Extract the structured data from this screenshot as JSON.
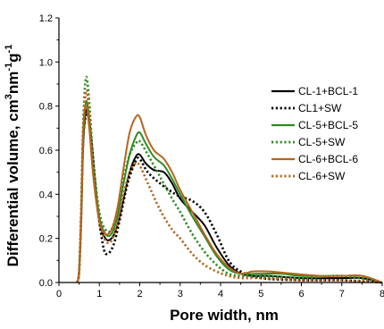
{
  "chart_data": {
    "type": "line",
    "title": "",
    "xlabel": "Pore width, nm",
    "ylabel_parts": {
      "main": "Differential volume, cm",
      "sup1": "3",
      "mid": "nm",
      "sup2": "-1",
      "g": "g",
      "sup3": "-1"
    },
    "xlim": [
      0,
      8
    ],
    "ylim": [
      0,
      1.2
    ],
    "xticks": [
      0,
      1,
      2,
      3,
      4,
      5,
      6,
      7,
      8
    ],
    "yticks": [
      0.0,
      0.2,
      0.4,
      0.6,
      0.8,
      1.0,
      1.2
    ],
    "ytick_labels": [
      "0.0",
      "0.2",
      "0.4",
      "0.6",
      "0.8",
      "1.0",
      "1.2"
    ],
    "legend_position": "right",
    "series": [
      {
        "name": "CL-1+BCL-1",
        "color": "#000000",
        "style": "solid",
        "points": [
          [
            0.45,
            0
          ],
          [
            0.5,
            0.05
          ],
          [
            0.55,
            0.28
          ],
          [
            0.6,
            0.62
          ],
          [
            0.67,
            0.78
          ],
          [
            0.75,
            0.72
          ],
          [
            0.85,
            0.5
          ],
          [
            1.0,
            0.28
          ],
          [
            1.15,
            0.2
          ],
          [
            1.3,
            0.2
          ],
          [
            1.45,
            0.26
          ],
          [
            1.6,
            0.38
          ],
          [
            1.75,
            0.5
          ],
          [
            1.9,
            0.57
          ],
          [
            2.0,
            0.58
          ],
          [
            2.15,
            0.54
          ],
          [
            2.35,
            0.51
          ],
          [
            2.6,
            0.5
          ],
          [
            2.8,
            0.45
          ],
          [
            3.0,
            0.38
          ],
          [
            3.3,
            0.32
          ],
          [
            3.6,
            0.26
          ],
          [
            3.9,
            0.16
          ],
          [
            4.2,
            0.08
          ],
          [
            4.5,
            0.04
          ],
          [
            4.8,
            0.03
          ],
          [
            5.2,
            0.03
          ],
          [
            6.0,
            0.02
          ],
          [
            7.0,
            0.02
          ],
          [
            7.5,
            0.02
          ],
          [
            8.0,
            0.0
          ]
        ]
      },
      {
        "name": "CL1+SW",
        "color": "#000000",
        "style": "dotted",
        "points": [
          [
            0.45,
            0
          ],
          [
            0.5,
            0.05
          ],
          [
            0.55,
            0.3
          ],
          [
            0.6,
            0.65
          ],
          [
            0.7,
            0.77
          ],
          [
            0.8,
            0.65
          ],
          [
            0.95,
            0.35
          ],
          [
            1.1,
            0.16
          ],
          [
            1.2,
            0.13
          ],
          [
            1.35,
            0.17
          ],
          [
            1.5,
            0.28
          ],
          [
            1.7,
            0.45
          ],
          [
            1.9,
            0.55
          ],
          [
            2.0,
            0.56
          ],
          [
            2.2,
            0.5
          ],
          [
            2.5,
            0.45
          ],
          [
            2.8,
            0.41
          ],
          [
            3.0,
            0.39
          ],
          [
            3.3,
            0.37
          ],
          [
            3.6,
            0.32
          ],
          [
            3.9,
            0.22
          ],
          [
            4.2,
            0.1
          ],
          [
            4.5,
            0.05
          ],
          [
            5.0,
            0.02
          ],
          [
            6.0,
            0.01
          ],
          [
            7.0,
            0.01
          ],
          [
            8.0,
            0.0
          ]
        ]
      },
      {
        "name": "CL-5+BCL-5",
        "color": "#2e8b22",
        "style": "solid",
        "points": [
          [
            0.45,
            0
          ],
          [
            0.5,
            0.05
          ],
          [
            0.55,
            0.3
          ],
          [
            0.6,
            0.65
          ],
          [
            0.67,
            0.82
          ],
          [
            0.75,
            0.74
          ],
          [
            0.85,
            0.52
          ],
          [
            1.0,
            0.3
          ],
          [
            1.15,
            0.22
          ],
          [
            1.3,
            0.22
          ],
          [
            1.45,
            0.3
          ],
          [
            1.6,
            0.45
          ],
          [
            1.75,
            0.58
          ],
          [
            1.9,
            0.66
          ],
          [
            2.0,
            0.68
          ],
          [
            2.15,
            0.63
          ],
          [
            2.35,
            0.57
          ],
          [
            2.6,
            0.53
          ],
          [
            2.8,
            0.47
          ],
          [
            3.0,
            0.4
          ],
          [
            3.3,
            0.3
          ],
          [
            3.6,
            0.21
          ],
          [
            3.9,
            0.12
          ],
          [
            4.2,
            0.06
          ],
          [
            4.5,
            0.04
          ],
          [
            5.0,
            0.04
          ],
          [
            5.5,
            0.04
          ],
          [
            6.0,
            0.03
          ],
          [
            7.0,
            0.03
          ],
          [
            7.5,
            0.03
          ],
          [
            8.0,
            0.0
          ]
        ]
      },
      {
        "name": "CL-5+SW",
        "color": "#2e8b22",
        "style": "dotted",
        "points": [
          [
            0.45,
            0
          ],
          [
            0.5,
            0.05
          ],
          [
            0.55,
            0.33
          ],
          [
            0.6,
            0.72
          ],
          [
            0.67,
            0.93
          ],
          [
            0.75,
            0.82
          ],
          [
            0.85,
            0.55
          ],
          [
            1.0,
            0.32
          ],
          [
            1.15,
            0.24
          ],
          [
            1.3,
            0.24
          ],
          [
            1.45,
            0.33
          ],
          [
            1.6,
            0.47
          ],
          [
            1.75,
            0.58
          ],
          [
            1.9,
            0.63
          ],
          [
            2.0,
            0.64
          ],
          [
            2.2,
            0.58
          ],
          [
            2.5,
            0.48
          ],
          [
            2.8,
            0.38
          ],
          [
            3.0,
            0.32
          ],
          [
            3.3,
            0.22
          ],
          [
            3.6,
            0.14
          ],
          [
            3.9,
            0.08
          ],
          [
            4.2,
            0.04
          ],
          [
            4.5,
            0.03
          ],
          [
            5.0,
            0.03
          ],
          [
            6.0,
            0.02
          ],
          [
            7.0,
            0.03
          ],
          [
            8.0,
            0.0
          ]
        ]
      },
      {
        "name": "CL-6+BCL-6",
        "color": "#b5651d",
        "style": "solid",
        "points": [
          [
            0.45,
            0
          ],
          [
            0.5,
            0.05
          ],
          [
            0.55,
            0.32
          ],
          [
            0.6,
            0.7
          ],
          [
            0.67,
            0.8
          ],
          [
            0.75,
            0.7
          ],
          [
            0.85,
            0.48
          ],
          [
            1.0,
            0.28
          ],
          [
            1.15,
            0.22
          ],
          [
            1.3,
            0.24
          ],
          [
            1.45,
            0.34
          ],
          [
            1.6,
            0.52
          ],
          [
            1.75,
            0.68
          ],
          [
            1.9,
            0.75
          ],
          [
            2.0,
            0.75
          ],
          [
            2.15,
            0.67
          ],
          [
            2.35,
            0.6
          ],
          [
            2.6,
            0.56
          ],
          [
            2.8,
            0.5
          ],
          [
            3.0,
            0.42
          ],
          [
            3.3,
            0.32
          ],
          [
            3.6,
            0.22
          ],
          [
            3.9,
            0.13
          ],
          [
            4.2,
            0.07
          ],
          [
            4.5,
            0.04
          ],
          [
            4.8,
            0.05
          ],
          [
            5.2,
            0.05
          ],
          [
            5.8,
            0.04
          ],
          [
            6.5,
            0.03
          ],
          [
            7.0,
            0.03
          ],
          [
            7.5,
            0.03
          ],
          [
            8.0,
            0.0
          ]
        ]
      },
      {
        "name": "CL-6+SW",
        "color": "#b5651d",
        "style": "dotted",
        "points": [
          [
            0.45,
            0
          ],
          [
            0.5,
            0.05
          ],
          [
            0.55,
            0.3
          ],
          [
            0.6,
            0.65
          ],
          [
            0.67,
            0.87
          ],
          [
            0.75,
            0.76
          ],
          [
            0.85,
            0.5
          ],
          [
            1.0,
            0.28
          ],
          [
            1.15,
            0.19
          ],
          [
            1.3,
            0.19
          ],
          [
            1.45,
            0.27
          ],
          [
            1.6,
            0.4
          ],
          [
            1.75,
            0.5
          ],
          [
            1.9,
            0.54
          ],
          [
            2.0,
            0.53
          ],
          [
            2.2,
            0.45
          ],
          [
            2.5,
            0.33
          ],
          [
            2.8,
            0.24
          ],
          [
            3.0,
            0.2
          ],
          [
            3.3,
            0.13
          ],
          [
            3.6,
            0.08
          ],
          [
            3.9,
            0.05
          ],
          [
            4.2,
            0.03
          ],
          [
            4.5,
            0.02
          ],
          [
            5.0,
            0.02
          ],
          [
            6.0,
            0.01
          ],
          [
            7.0,
            0.01
          ],
          [
            8.0,
            0.0
          ]
        ]
      }
    ]
  }
}
